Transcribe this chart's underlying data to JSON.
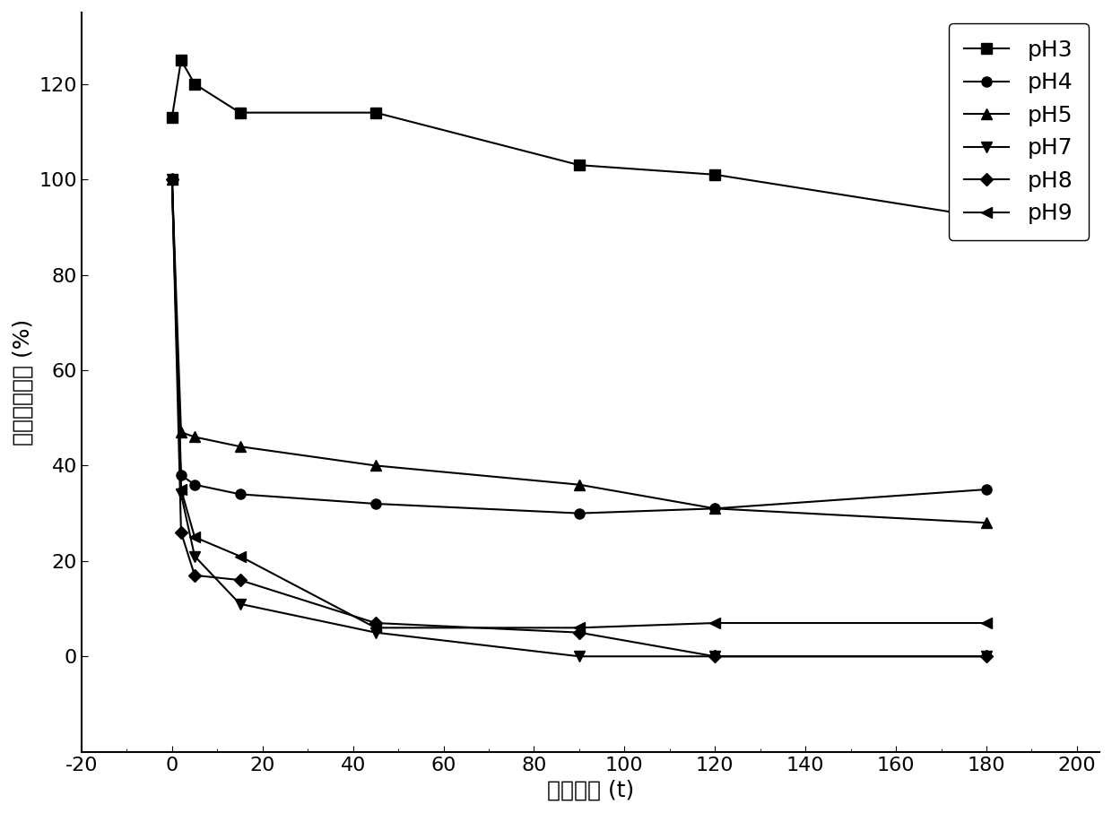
{
  "title": "",
  "xlabel": "反应时间 (t)",
  "ylabel": "联苯胺剩余率 (%)",
  "xlim": [
    -20,
    205
  ],
  "ylim": [
    -20,
    135
  ],
  "xticks": [
    -20,
    0,
    20,
    40,
    60,
    80,
    100,
    120,
    140,
    160,
    180,
    200
  ],
  "yticks": [
    0,
    20,
    40,
    60,
    80,
    100,
    120
  ],
  "series": [
    {
      "label": "pH3",
      "x": [
        0,
        2,
        5,
        15,
        45,
        90,
        120,
        180
      ],
      "y": [
        113,
        125,
        120,
        114,
        114,
        103,
        101,
        92
      ],
      "marker": "s",
      "markersize": 8,
      "linewidth": 1.5,
      "color": "#000000"
    },
    {
      "label": "pH4",
      "x": [
        0,
        2,
        5,
        15,
        45,
        90,
        120,
        180
      ],
      "y": [
        100,
        38,
        36,
        34,
        32,
        30,
        31,
        35
      ],
      "marker": "o",
      "markersize": 8,
      "linewidth": 1.5,
      "color": "#000000"
    },
    {
      "label": "pH5",
      "x": [
        0,
        2,
        5,
        15,
        45,
        90,
        120,
        180
      ],
      "y": [
        100,
        47,
        46,
        44,
        40,
        36,
        31,
        28
      ],
      "marker": "^",
      "markersize": 8,
      "linewidth": 1.5,
      "color": "#000000"
    },
    {
      "label": "pH7",
      "x": [
        0,
        2,
        5,
        15,
        45,
        90,
        120,
        180
      ],
      "y": [
        100,
        34,
        21,
        11,
        5,
        0,
        0,
        0
      ],
      "marker": "v",
      "markersize": 8,
      "linewidth": 1.5,
      "color": "#000000"
    },
    {
      "label": "pH8",
      "x": [
        0,
        2,
        5,
        15,
        45,
        90,
        120,
        180
      ],
      "y": [
        100,
        26,
        17,
        16,
        7,
        5,
        0,
        0
      ],
      "marker": "D",
      "markersize": 7,
      "linewidth": 1.5,
      "color": "#000000"
    },
    {
      "label": "pH9",
      "x": [
        0,
        2,
        5,
        15,
        45,
        90,
        120,
        180
      ],
      "y": [
        100,
        35,
        25,
        21,
        6,
        6,
        7,
        7
      ],
      "marker": "<",
      "markersize": 8,
      "linewidth": 1.5,
      "color": "#000000"
    }
  ],
  "legend_loc": "upper right",
  "font_size": 18,
  "tick_font_size": 16,
  "label_font_size": 18,
  "background_color": "#ffffff"
}
